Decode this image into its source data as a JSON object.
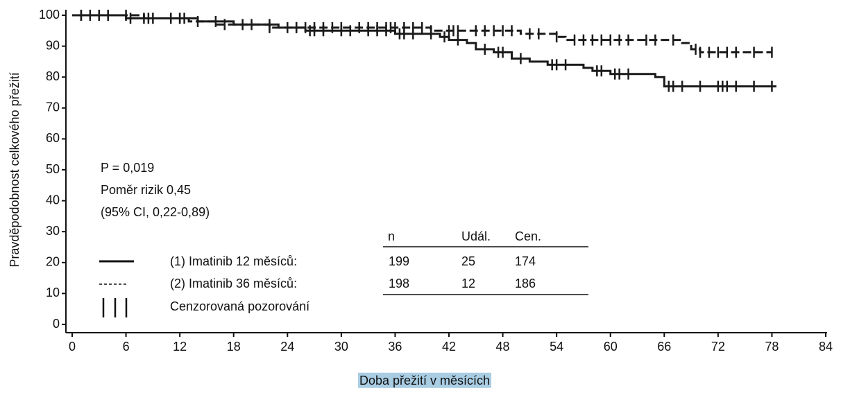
{
  "chart_data": {
    "type": "kaplan-meier",
    "xlabel": "Doba přežití v měsících",
    "ylabel": "Pravděpodobnost celkového přežití",
    "xlim": [
      0,
      84
    ],
    "xticks": [
      0,
      6,
      12,
      18,
      24,
      30,
      36,
      42,
      48,
      54,
      60,
      66,
      72,
      78,
      84
    ],
    "ylim": [
      0,
      100
    ],
    "yticks": [
      0,
      10,
      20,
      30,
      40,
      50,
      60,
      70,
      80,
      90,
      100
    ],
    "annotations": [
      "P = 0,019",
      "Poměr rizik 0,45",
      "(95% CI, 0,22-0,89)"
    ],
    "series": [
      {
        "name": "(1) Imatinib 12 měsíců:",
        "color": "#1a1a1a",
        "dash": "solid",
        "x": [
          0,
          6,
          14,
          18,
          23,
          26,
          36,
          41,
          42,
          44,
          45,
          47,
          49,
          51,
          53,
          57,
          58,
          60,
          65,
          66,
          78.5
        ],
        "values": [
          100,
          99,
          98,
          97,
          96,
          95,
          94,
          93,
          92,
          91,
          89,
          88,
          86,
          85,
          84,
          83,
          82,
          81,
          80,
          77,
          77
        ],
        "censored_x": [
          1,
          2,
          4,
          6.5,
          8,
          9,
          12,
          12.5,
          16,
          20,
          22,
          25,
          26.5,
          27,
          28,
          30,
          31,
          33,
          34,
          35,
          36.5,
          37,
          38,
          40,
          41.5,
          43,
          46,
          47.5,
          48,
          50,
          53.5,
          54,
          55,
          58.5,
          59,
          60.5,
          61,
          62,
          66.5,
          67,
          68,
          70,
          72,
          72.5,
          73,
          74,
          76,
          78
        ],
        "table": [
          199,
          25,
          174
        ]
      },
      {
        "name": "(2) Imatinib 36 měsíců:",
        "color": "#1a1a1a",
        "dash": "dashed",
        "x": [
          0,
          8,
          13,
          16,
          22,
          40,
          50,
          54,
          55,
          68,
          69,
          70,
          78
        ],
        "values": [
          100,
          99,
          98,
          97,
          96,
          95,
          94,
          93,
          92,
          91,
          89,
          88,
          88
        ],
        "censored_x": [
          1,
          3,
          6,
          8.5,
          11,
          12,
          14,
          17,
          19,
          22,
          24,
          25,
          26,
          27,
          28,
          29,
          30,
          32,
          33,
          34,
          35,
          35.5,
          36,
          37,
          38,
          39,
          40,
          42,
          42.5,
          43,
          45,
          46,
          47,
          48,
          49,
          51,
          52,
          54,
          56,
          57,
          58,
          59,
          60,
          61,
          62,
          64,
          65,
          67,
          69.5,
          70,
          71,
          72,
          73,
          74,
          76,
          78
        ],
        "table": [
          198,
          12,
          186
        ]
      }
    ],
    "table_headers": [
      "n",
      "Udál.",
      "Cen."
    ],
    "censored_label": "Cenzorovaná pozorování"
  }
}
